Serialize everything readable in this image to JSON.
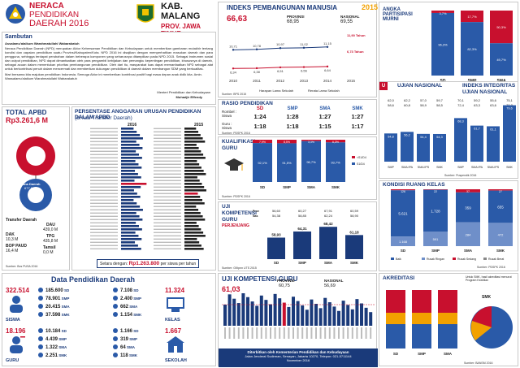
{
  "header": {
    "title_line1": "NERACA",
    "title_line2": "PENDIDIKAN",
    "title_line3": "DAERAH 2016",
    "region_name": "KAB. MALANG",
    "province": "PROV. JAWA TIMUR"
  },
  "sambutan": {
    "heading": "Sambutan",
    "greeting": "Assalamu'alaikum Warahmatullahi Wabarakatuh",
    "para1": "Neraca Pendidikan Daerah (NPD) merupakan Aktor Kebersaman Pendidikan dan Kebudayaan untuk memberikan gambaran mutakhir tentang kondisi dan capaian pendidikan suatu Provinsi/Kabupaten/Kota. NPD 2016 ini disajikan dengan memperhatikan masukan daerah dan para pengguna, sehingga terdapat perubahan dalam beberapa komponen yang seharusnya ditampilkan pada NPD 2015. Sebagai instrumen sosial dan output pendidikan, NPD dapat dimanfaatkan oleh para pengambil kebijakan dan pemangku kepentingan pendidikan, khususnya di daerah, sebagai acuan dalam menentukan prioritas pembangunan pendidikan. Oleh dari itu, masyarakat luas dapat memanfaatkan NPD sebagai alat untuk berkontribusi penuh dalam mencermati dan memberikan dukungan pendidikan di daerah dalam membangun SDM yang berkualitas.",
    "para2": "Mari bersama kita majukan pendidikan Indonesia. Semoga Aktor ini memberikan kontribusi positif bagi masa depan anak didik kita. Amin. Wassalamu'alaikum Warahmatullahi Wabarakatuh",
    "signer1": "Menteri Pendidikan dan Kebudayaan",
    "signer2": "Muhadjir Effendy"
  },
  "ipm": {
    "title": "INDEKS PEMBANGUNAN MANUSIA",
    "year": "2015",
    "kab_value": "66,63",
    "prov_label": "PROVINSI",
    "prov_value": "68,95",
    "nas_label": "NASIONAL",
    "nas_value": "69,55",
    "hls_label": "11,90 Tahun",
    "rls_label": "6,73 Tahun",
    "legend1": "Harapan Lama Sekolah",
    "legend2": "Rerata Lama Sekolah",
    "source": "Sumber: BPS 2015",
    "years": [
      "2010",
      "2011",
      "2012",
      "2013",
      "2014",
      "2015"
    ],
    "hls_vals": [
      "10,71",
      "10,78",
      "10,97",
      "11,02",
      "11,15",
      ""
    ],
    "rls_vals": [
      "6,34",
      "6,38",
      "6,51",
      "6,56",
      "6,64",
      ""
    ]
  },
  "apm": {
    "title": "ANGKA PARTISIPASI MURNI",
    "source": "Sumber: PDSPK 2016",
    "cats": [
      "SD",
      "SMP",
      "SMA"
    ],
    "top": [
      "3,7%",
      "17,7%",
      "50,3%"
    ],
    "bottom": [
      "96,3%",
      "82,3%",
      "49,7%"
    ]
  },
  "total_apbd": {
    "label": "TOTAL APBD",
    "value": "Rp3.261,6 M",
    "dana_label": "Dana Daerah",
    "dana_value": "677,6 M",
    "transfer_label": "Transfer Daerah",
    "dak_label": "DAK",
    "dak_value": "10,3 M",
    "bop_label": "BOP PAUD",
    "bop_value": "16,4 M",
    "dau_label": "DAU",
    "dau_value": "439,0 M",
    "tpg_label": "TPG",
    "tpg_value": "435,8 M",
    "tamsil_label": "Tamsil",
    "tamsil_value": "0,0 M",
    "source": "Sumber: Bos PUSA 2016"
  },
  "anggaran": {
    "title": "PERSENTASE ANGGARAN URUSAN PENDIDIKAN DALAM APBD",
    "subtitle": "(di luar Transfer Daerah)",
    "year1": "2016",
    "year2": "2015",
    "footer_label": "Setara dengan:",
    "footer_value": "Rp1.263.800",
    "footer_suffix": "per siswa per tahun"
  },
  "rasio": {
    "title": "RASIO PENDIDIKAN",
    "row1_label": "Rombel : Siswa",
    "row2_label": "Guru : Siswa",
    "cols": [
      "SD",
      "SMP",
      "SMA",
      "SMK"
    ],
    "row1": [
      "1:24",
      "1:28",
      "1:27",
      "1:27"
    ],
    "row2": [
      "1:18",
      "1:18",
      "1:15",
      "1:17"
    ],
    "source": "Sumber: PDSPK 2016"
  },
  "kualifikasi": {
    "title": "KUALIFIKASI GURU",
    "cats": [
      "SD",
      "SMP",
      "SMA",
      "SMK"
    ],
    "top": [
      "7,9%",
      "8,5%",
      "3,3%",
      "6,3%"
    ],
    "bottom": [
      "92,1%",
      "91,5%",
      "96,7%",
      "93,7%"
    ],
    "legend1": "<S1/D4",
    "legend2": "S1/D4",
    "source": "Sumber: PDSPK 2016"
  },
  "ukg_small": {
    "title": "UJI KOMPETENSI GURU",
    "sub": "PERJENJANG",
    "kab_label": "Kab",
    "prov_label": "Prov",
    "nas_label": "Nas",
    "cats": [
      "SD",
      "SMP",
      "SMA",
      "SMK"
    ],
    "values": [
      "58,93",
      "64,31",
      "68,42",
      "61,18"
    ],
    "prov": [
      "56,60",
      "60,27",
      "67,91",
      "60,59"
    ],
    "nas": [
      "54,38",
      "58,85",
      "62,24",
      "58,90"
    ],
    "source": "Sumber: GKtpnn UTS 2015"
  },
  "un": {
    "title": "UJIAN NASIONAL",
    "cats": [
      "SMP",
      "SMA IPA",
      "SMA IPS",
      "SMK"
    ],
    "prov": [
      "62,0",
      "62,2",
      "57,0",
      "59,7"
    ],
    "nas": [
      "58,6",
      "60,8",
      "58,9",
      "58,5"
    ],
    "kab": [
      "54,8",
      "56,2",
      "54,4",
      "54,3"
    ],
    "source": "Sumber: Puspendik 2016"
  },
  "iiun": {
    "title": "INDEKS INTEGRITAS UJIAN NASIONAL",
    "cats": [
      "SMP",
      "SMA IPA",
      "SMA IPS",
      "SMK"
    ],
    "prov": [
      "70,1",
      "59,2",
      "55,6",
      "75,1"
    ],
    "nas": [
      "72,4",
      "63,3",
      "63,6",
      "70,8"
    ],
    "y2015": [
      "68,3",
      "61,7",
      "61,1",
      "79,6"
    ],
    "legend1": "2015",
    "legend2": "2016",
    "source": "Sumber: Puspendik 2016"
  },
  "kondisi": {
    "title": "KONDISI RUANG KELAS",
    "cats": [
      "SD",
      "SMP",
      "SMA",
      "SMK"
    ],
    "baik": [
      "5.621",
      "1.728",
      "359",
      "655"
    ],
    "rusak_ringan": [
      "1.168",
      "591",
      "284",
      "472"
    ],
    "rusak_sedang": [
      "126",
      "22",
      "37",
      "27"
    ],
    "legend": [
      "Baik",
      "Rusak Ringan",
      "Rusak Sedang",
      "Rusak Berat"
    ],
    "source": "Sumber: PDSPK 2016"
  },
  "dpd": {
    "title": "Data Pendidikan Daerah",
    "siswa_label": "SISWA",
    "siswa_total": "322.514",
    "siswa": [
      [
        "185.600",
        "SD"
      ],
      [
        "78.901",
        "SMP"
      ],
      [
        "20.415",
        "SMA"
      ],
      [
        "37.598",
        "SMK"
      ]
    ],
    "guru_label": "GURU",
    "guru_total": "18.196",
    "guru": [
      [
        "10.184",
        "SD"
      ],
      [
        "4.439",
        "SMP"
      ],
      [
        "1.322",
        "SMA"
      ],
      [
        "2.251",
        "SMK"
      ]
    ],
    "kelas_label": "KELAS",
    "kelas_total": "11.324",
    "kelas": [
      [
        "7.108",
        "SD"
      ],
      [
        "2.400",
        "SMP"
      ],
      [
        "662",
        "SMA"
      ],
      [
        "1.154",
        "SMK"
      ]
    ],
    "sekolah_label": "SEKOLAH",
    "sekolah_total": "1.667",
    "sekolah": [
      [
        "1.166",
        "SD"
      ],
      [
        "319",
        "SMP"
      ],
      [
        "64",
        "SMA"
      ],
      [
        "118",
        "SMK"
      ]
    ]
  },
  "ukg_big": {
    "title": "UJI KOMPETENSI GURU",
    "kab_value": "61,03",
    "prov_label": "PROVINSI",
    "prov_value": "60,75",
    "nas_label": "NASIONAL",
    "nas_value": "56,69"
  },
  "footer": {
    "line1": "Diterbitkan oleh Kementerian Pendidikan dan Kebudayaan",
    "line2": "Jalan Jenderal Sudirman, Senayan, Jakarta 10270, Telepon: 021-5711144",
    "line3": "November 2016"
  },
  "akreditasi": {
    "title": "AKREDITASI",
    "note": "Untuk SMK, hasil akreditasi menurut Program Keahlian",
    "cats": [
      "SD",
      "SMP",
      "SMA"
    ],
    "smk_label": "SMK",
    "source": "Sumber: BANSM 2016"
  },
  "colors": {
    "red": "#c8102e",
    "blue": "#2a5aa8",
    "navy": "#1a3a7a",
    "gray": "#9a9a9a"
  }
}
